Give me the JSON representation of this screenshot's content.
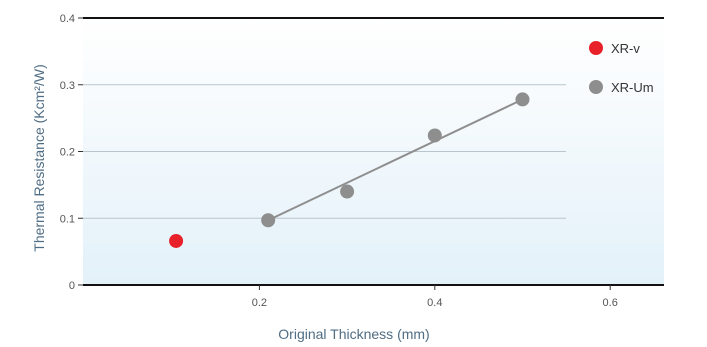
{
  "chart_data": {
    "type": "scatter",
    "title": "",
    "xlabel": "Original Thickness (mm)",
    "ylabel": "Thermal Resistance (Kcm²/W)",
    "xlim": [
      0,
      0.65
    ],
    "ylim": [
      0,
      0.4
    ],
    "x_ticks": [
      {
        "value": 0.2,
        "label": "0.2"
      },
      {
        "value": 0.4,
        "label": "0.4"
      },
      {
        "value": 0.6,
        "label": "0.6"
      }
    ],
    "y_ticks": [
      {
        "value": 0,
        "label": "0"
      },
      {
        "value": 0.1,
        "label": "0.1"
      },
      {
        "value": 0.2,
        "label": "0.2"
      },
      {
        "value": 0.3,
        "label": "0.3"
      },
      {
        "value": 0.4,
        "label": "0.4"
      }
    ],
    "grid": true,
    "legend_position": "top-right",
    "series": [
      {
        "name": "XR-v",
        "color": "#e8202a",
        "trend_line": false,
        "points": [
          {
            "x": 0.105,
            "y": 0.066
          }
        ]
      },
      {
        "name": "XR-Um",
        "color": "#8e8e8e",
        "trend_line": true,
        "points": [
          {
            "x": 0.21,
            "y": 0.097
          },
          {
            "x": 0.3,
            "y": 0.14
          },
          {
            "x": 0.4,
            "y": 0.224
          },
          {
            "x": 0.5,
            "y": 0.278
          }
        ]
      }
    ]
  }
}
